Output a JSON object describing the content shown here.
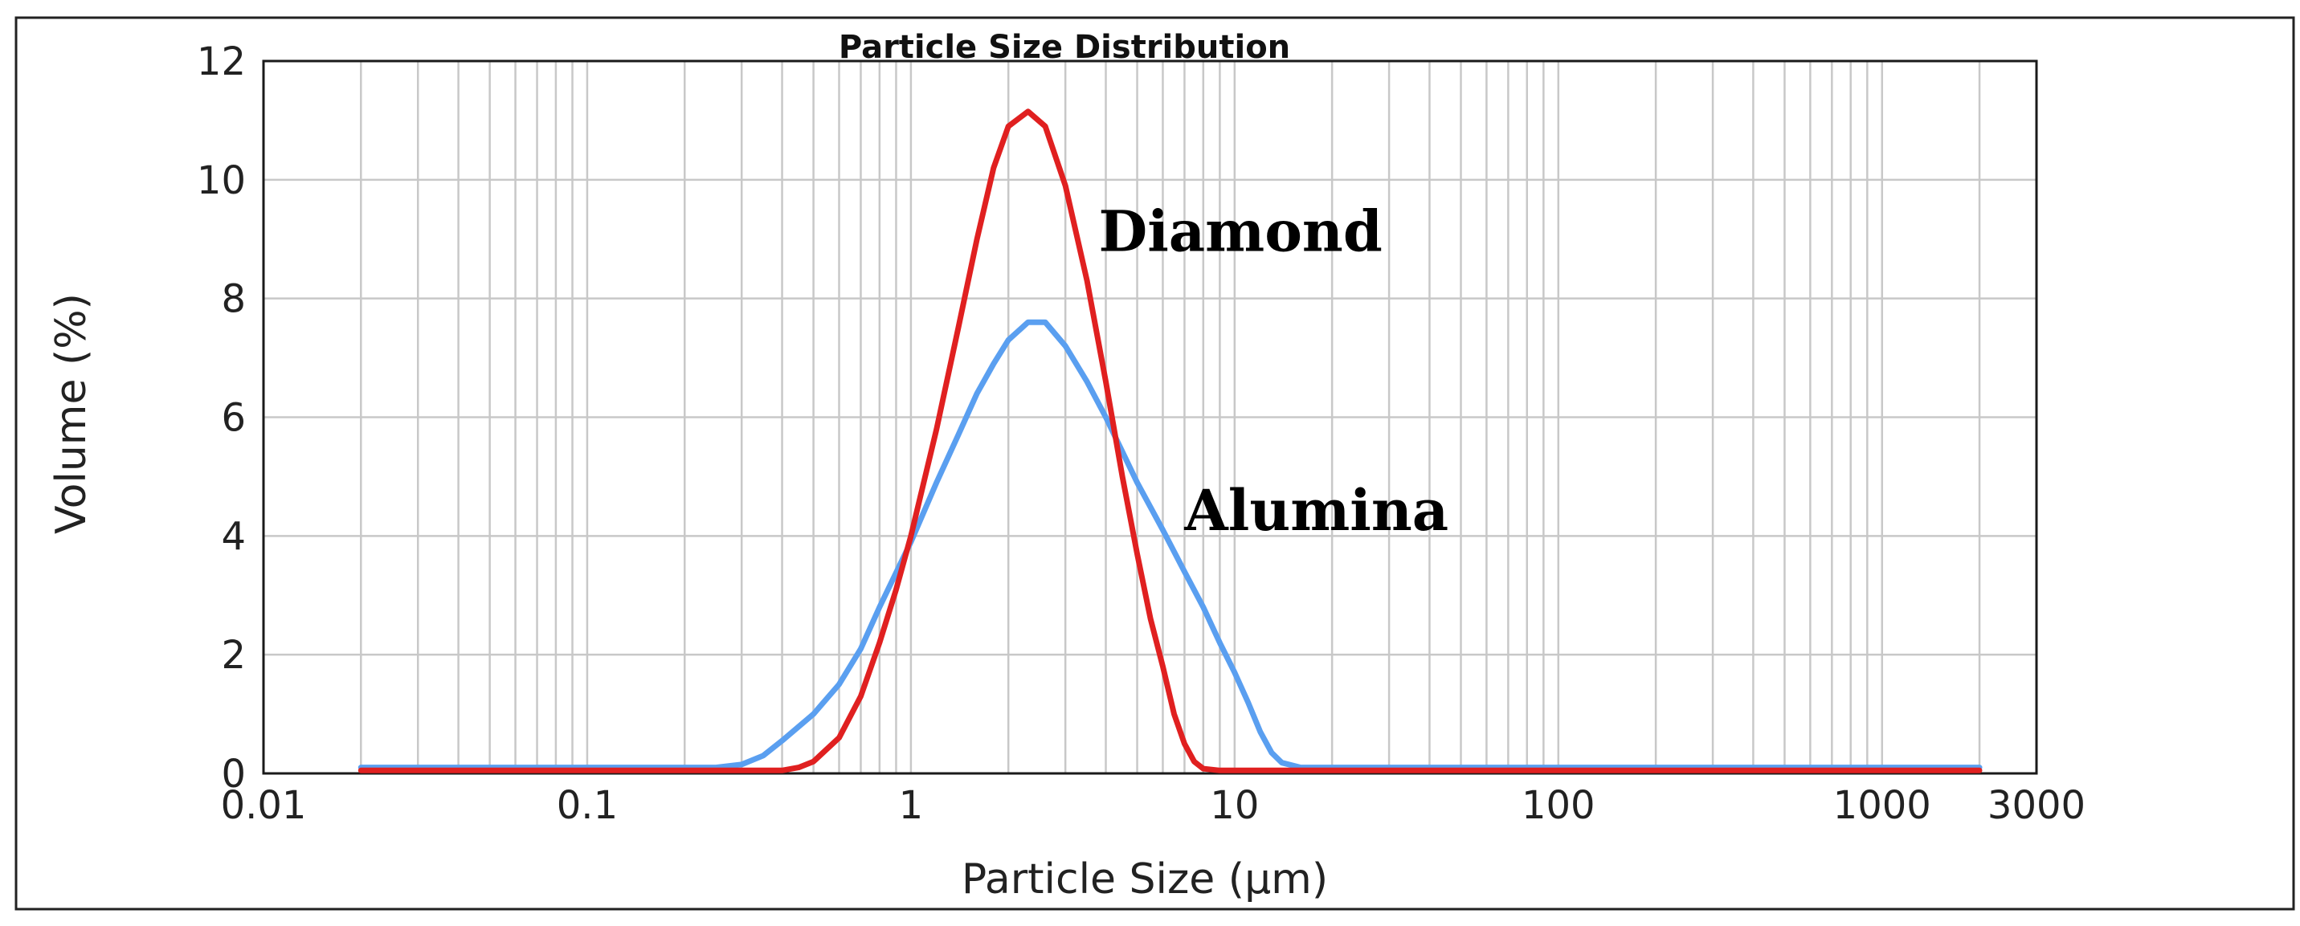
{
  "chart_data": {
    "type": "line",
    "title": "Particle Size Distribution",
    "xlabel": "Particle Size (µm)",
    "ylabel": "Volume (%)",
    "xscale": "log",
    "xlim": [
      0.01,
      3000
    ],
    "ylim": [
      0,
      12
    ],
    "grid": true,
    "x_ticks": [
      {
        "value": 0.01,
        "label": "0.01"
      },
      {
        "value": 0.1,
        "label": "0.1"
      },
      {
        "value": 1,
        "label": "1"
      },
      {
        "value": 10,
        "label": "10"
      },
      {
        "value": 100,
        "label": "100"
      },
      {
        "value": 1000,
        "label": "1000"
      },
      {
        "value": 3000,
        "label": "3000"
      }
    ],
    "y_ticks": [
      {
        "value": 0,
        "label": "0"
      },
      {
        "value": 2,
        "label": "2"
      },
      {
        "value": 4,
        "label": "4"
      },
      {
        "value": 6,
        "label": "6"
      },
      {
        "value": 8,
        "label": "8"
      },
      {
        "value": 10,
        "label": "10"
      },
      {
        "value": 12,
        "label": "12"
      }
    ],
    "series": [
      {
        "name": "Diamond",
        "color": "#e02020",
        "label_at": {
          "x": 3.8,
          "y": 8.8
        },
        "points": [
          [
            0.02,
            0.05
          ],
          [
            0.1,
            0.05
          ],
          [
            0.3,
            0.05
          ],
          [
            0.4,
            0.05
          ],
          [
            0.45,
            0.1
          ],
          [
            0.5,
            0.2
          ],
          [
            0.6,
            0.6
          ],
          [
            0.7,
            1.3
          ],
          [
            0.8,
            2.2
          ],
          [
            0.9,
            3.1
          ],
          [
            1.0,
            4.0
          ],
          [
            1.2,
            5.8
          ],
          [
            1.4,
            7.5
          ],
          [
            1.6,
            9.0
          ],
          [
            1.8,
            10.2
          ],
          [
            2.0,
            10.9
          ],
          [
            2.3,
            11.15
          ],
          [
            2.6,
            10.9
          ],
          [
            3.0,
            9.9
          ],
          [
            3.5,
            8.3
          ],
          [
            4.0,
            6.6
          ],
          [
            4.5,
            5.0
          ],
          [
            5.0,
            3.7
          ],
          [
            5.5,
            2.6
          ],
          [
            6.0,
            1.8
          ],
          [
            6.5,
            1.0
          ],
          [
            7.0,
            0.5
          ],
          [
            7.5,
            0.2
          ],
          [
            8.0,
            0.08
          ],
          [
            9.0,
            0.05
          ],
          [
            20,
            0.05
          ],
          [
            100,
            0.05
          ],
          [
            1000,
            0.05
          ],
          [
            2000,
            0.05
          ]
        ]
      },
      {
        "name": "Alumina",
        "color": "#5a9ff0",
        "label_at": {
          "x": 7.0,
          "y": 4.1
        },
        "points": [
          [
            0.02,
            0.1
          ],
          [
            0.1,
            0.1
          ],
          [
            0.25,
            0.1
          ],
          [
            0.3,
            0.15
          ],
          [
            0.35,
            0.3
          ],
          [
            0.4,
            0.55
          ],
          [
            0.5,
            1.0
          ],
          [
            0.6,
            1.5
          ],
          [
            0.7,
            2.1
          ],
          [
            0.8,
            2.8
          ],
          [
            1.0,
            3.9
          ],
          [
            1.2,
            4.9
          ],
          [
            1.4,
            5.7
          ],
          [
            1.6,
            6.4
          ],
          [
            1.8,
            6.9
          ],
          [
            2.0,
            7.3
          ],
          [
            2.3,
            7.6
          ],
          [
            2.6,
            7.6
          ],
          [
            3.0,
            7.2
          ],
          [
            3.5,
            6.6
          ],
          [
            4.0,
            6.0
          ],
          [
            5.0,
            4.9
          ],
          [
            6.0,
            4.1
          ],
          [
            7.0,
            3.4
          ],
          [
            8.0,
            2.8
          ],
          [
            9.0,
            2.2
          ],
          [
            10.0,
            1.7
          ],
          [
            11.0,
            1.2
          ],
          [
            12.0,
            0.7
          ],
          [
            13.0,
            0.35
          ],
          [
            14.0,
            0.18
          ],
          [
            16.0,
            0.1
          ],
          [
            100,
            0.1
          ],
          [
            1000,
            0.1
          ],
          [
            2000,
            0.1
          ]
        ]
      }
    ]
  }
}
